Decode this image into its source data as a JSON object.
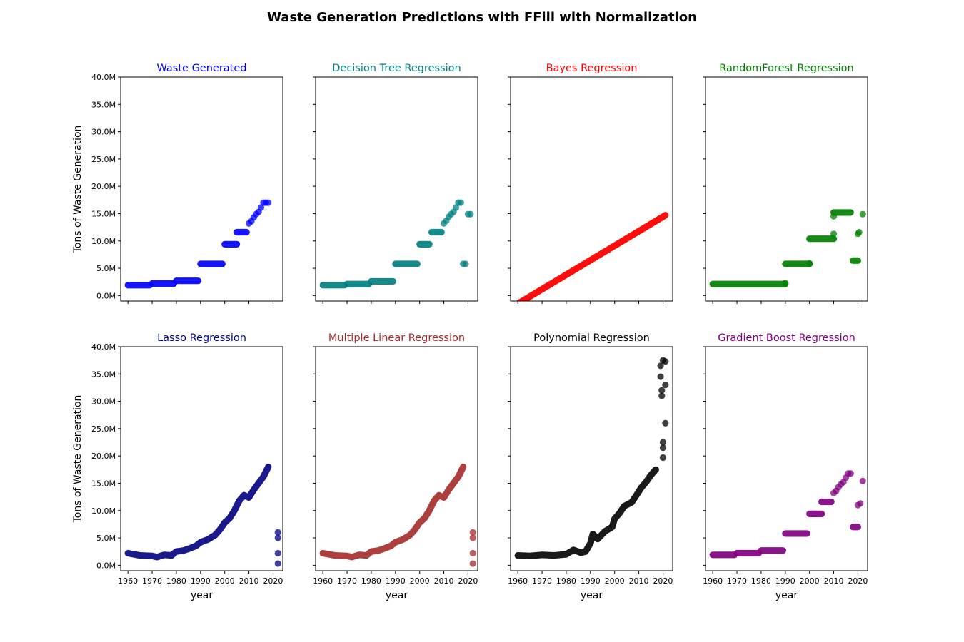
{
  "suptitle": "Waste Generation Predictions with FFill with Normalization",
  "chart_data": [
    {
      "type": "scatter",
      "title": "Waste Generated",
      "color": "#0000ff",
      "xlabel": "",
      "ylabel": "Tons of Waste Generation",
      "ylim": [
        -1000000,
        40000000
      ],
      "xticks": [
        1960,
        1970,
        1980,
        1990,
        2000,
        2010,
        2020
      ],
      "yticks": [
        "0.0M",
        "5.0M",
        "10.0M",
        "15.0M",
        "20.0M",
        "25.0M",
        "30.0M",
        "35.0M",
        "40.0M"
      ],
      "segments": [
        {
          "x0": 1960,
          "x1": 1969,
          "y": 1900000
        },
        {
          "x0": 1970,
          "x1": 1979,
          "y": 2200000
        },
        {
          "x0": 1980,
          "x1": 1989,
          "y": 2700000
        },
        {
          "x0": 1990,
          "x1": 1999,
          "y": 5800000
        },
        {
          "x0": 2000,
          "x1": 2005,
          "y": 9400000
        },
        {
          "x0": 2005,
          "x1": 2009,
          "y": 11600000
        }
      ],
      "points": [
        [
          2010,
          13200000
        ],
        [
          2011,
          13600000
        ],
        [
          2012,
          14300000
        ],
        [
          2013,
          14900000
        ],
        [
          2014,
          15300000
        ],
        [
          2015,
          16100000
        ],
        [
          2016,
          17000000
        ],
        [
          2017,
          17000000
        ],
        [
          2018,
          17000000
        ]
      ]
    },
    {
      "type": "scatter",
      "title": "Decision Tree Regression",
      "color": "#008080",
      "xlabel": "",
      "ylabel": "",
      "ylim": [
        -1000000,
        40000000
      ],
      "xticks": [
        1960,
        1970,
        1980,
        1990,
        2000,
        2010,
        2020
      ],
      "segments": [
        {
          "x0": 1960,
          "x1": 1969,
          "y": 1900000
        },
        {
          "x0": 1970,
          "x1": 1979,
          "y": 2100000
        },
        {
          "x0": 1980,
          "x1": 1989,
          "y": 2600000
        },
        {
          "x0": 1990,
          "x1": 1999,
          "y": 5800000
        },
        {
          "x0": 2000,
          "x1": 2004,
          "y": 9400000
        },
        {
          "x0": 2005,
          "x1": 2009,
          "y": 11600000
        }
      ],
      "points": [
        [
          2010,
          13200000
        ],
        [
          2011,
          13700000
        ],
        [
          2012,
          14400000
        ],
        [
          2013,
          14900000
        ],
        [
          2014,
          15300000
        ],
        [
          2015,
          16100000
        ],
        [
          2016,
          17000000
        ],
        [
          2017,
          17000000
        ],
        [
          2018,
          5800000
        ],
        [
          2019,
          5800000
        ],
        [
          2020,
          14900000
        ],
        [
          2021,
          14900000
        ]
      ]
    },
    {
      "type": "scatter",
      "title": "Bayes Regression",
      "color": "#ff0000",
      "xlabel": "",
      "ylabel": "",
      "ylim": [
        -1000000,
        40000000
      ],
      "xticks": [
        1960,
        1970,
        1980,
        1990,
        2000,
        2010,
        2020
      ],
      "lines": [
        {
          "x0": 1960,
          "x1": 2021,
          "y0": -1500000,
          "y1": 14700000
        }
      ],
      "segments": [],
      "points": []
    },
    {
      "type": "scatter",
      "title": "RandomForest Regression",
      "color": "#008000",
      "xlabel": "",
      "ylabel": "",
      "ylim": [
        -1000000,
        40000000
      ],
      "xticks": [
        1960,
        1970,
        1980,
        1990,
        2000,
        2010,
        2020
      ],
      "segments": [
        {
          "x0": 1960,
          "x1": 1990,
          "y": 2100000
        },
        {
          "x0": 1990,
          "x1": 2000,
          "y": 5800000
        },
        {
          "x0": 2000,
          "x1": 2010,
          "y": 10400000
        },
        {
          "x0": 2010,
          "x1": 2017,
          "y": 15200000
        },
        {
          "x0": 2018,
          "x1": 2020,
          "y": 6400000
        }
      ],
      "points": [
        [
          1990,
          2300000
        ],
        [
          2000,
          5900000
        ],
        [
          2010,
          11300000
        ],
        [
          2010,
          14500000
        ],
        [
          2020,
          11300000
        ],
        [
          2020.5,
          11600000
        ],
        [
          2022,
          14900000
        ]
      ]
    },
    {
      "type": "scatter",
      "title": "Lasso Regression",
      "color": "#000080",
      "xlabel": "year",
      "ylabel": "Tons of Waste Generation",
      "ylim": [
        -1000000,
        40000000
      ],
      "xticks": [
        1960,
        1970,
        1980,
        1990,
        2000,
        2010,
        2020
      ],
      "yticks": [
        "0.0M",
        "5.0M",
        "10.0M",
        "15.0M",
        "20.0M",
        "25.0M",
        "30.0M",
        "35.0M",
        "40.0M"
      ],
      "curve": [
        [
          1960,
          2200000
        ],
        [
          1965,
          1800000
        ],
        [
          1970,
          1700000
        ],
        [
          1972,
          1500000
        ],
        [
          1975,
          1900000
        ],
        [
          1978,
          1800000
        ],
        [
          1980,
          2500000
        ],
        [
          1983,
          2700000
        ],
        [
          1985,
          3000000
        ],
        [
          1988,
          3500000
        ],
        [
          1990,
          4200000
        ],
        [
          1993,
          4700000
        ],
        [
          1996,
          5500000
        ],
        [
          1998,
          6500000
        ],
        [
          2000,
          7800000
        ],
        [
          2002,
          8600000
        ],
        [
          2004,
          10000000
        ],
        [
          2006,
          11800000
        ],
        [
          2008,
          12800000
        ],
        [
          2010,
          12400000
        ],
        [
          2012,
          13800000
        ],
        [
          2014,
          15000000
        ],
        [
          2016,
          16200000
        ],
        [
          2018,
          18000000
        ]
      ],
      "segments": [],
      "points": [
        [
          2022,
          6000000
        ],
        [
          2022,
          5000000
        ],
        [
          2022,
          2200000
        ],
        [
          2022,
          300000
        ]
      ]
    },
    {
      "type": "scatter",
      "title": "Multiple Linear Regression",
      "color": "#a52a2a",
      "xlabel": "year",
      "ylabel": "",
      "ylim": [
        -1000000,
        40000000
      ],
      "xticks": [
        1960,
        1970,
        1980,
        1990,
        2000,
        2010,
        2020
      ],
      "curve": [
        [
          1960,
          2200000
        ],
        [
          1965,
          1800000
        ],
        [
          1970,
          1700000
        ],
        [
          1972,
          1500000
        ],
        [
          1975,
          1900000
        ],
        [
          1978,
          1800000
        ],
        [
          1980,
          2500000
        ],
        [
          1983,
          2700000
        ],
        [
          1985,
          3000000
        ],
        [
          1988,
          3500000
        ],
        [
          1990,
          4200000
        ],
        [
          1993,
          4700000
        ],
        [
          1996,
          5500000
        ],
        [
          1998,
          6500000
        ],
        [
          2000,
          7800000
        ],
        [
          2002,
          8600000
        ],
        [
          2004,
          10000000
        ],
        [
          2006,
          11800000
        ],
        [
          2008,
          12800000
        ],
        [
          2010,
          12400000
        ],
        [
          2012,
          13800000
        ],
        [
          2014,
          15000000
        ],
        [
          2016,
          16200000
        ],
        [
          2018,
          18000000
        ]
      ],
      "segments": [],
      "points": [
        [
          2022,
          6000000
        ],
        [
          2022,
          5000000
        ],
        [
          2022,
          2200000
        ],
        [
          2022,
          300000
        ]
      ]
    },
    {
      "type": "scatter",
      "title": "Polynomial Regression",
      "color": "#000000",
      "xlabel": "year",
      "ylabel": "",
      "ylim": [
        -1000000,
        40000000
      ],
      "xticks": [
        1960,
        1970,
        1980,
        1990,
        2000,
        2010,
        2020
      ],
      "curve": [
        [
          1960,
          1800000
        ],
        [
          1965,
          1700000
        ],
        [
          1970,
          1900000
        ],
        [
          1975,
          1800000
        ],
        [
          1980,
          2000000
        ],
        [
          1983,
          2800000
        ],
        [
          1986,
          2300000
        ],
        [
          1988,
          2500000
        ],
        [
          1990,
          4000000
        ],
        [
          1991,
          5700000
        ],
        [
          1993,
          4800000
        ],
        [
          1996,
          6200000
        ],
        [
          1999,
          7000000
        ],
        [
          2000,
          8500000
        ],
        [
          2002,
          9500000
        ],
        [
          2004,
          10800000
        ],
        [
          2007,
          11500000
        ],
        [
          2009,
          12800000
        ],
        [
          2011,
          14200000
        ],
        [
          2013,
          15200000
        ],
        [
          2015,
          16500000
        ],
        [
          2017,
          17500000
        ]
      ],
      "segments": [],
      "points": [
        [
          2019,
          36500000
        ],
        [
          2019,
          34500000
        ],
        [
          2019.5,
          32000000
        ],
        [
          2019.5,
          31000000
        ],
        [
          2020,
          37500000
        ],
        [
          2020,
          22500000
        ],
        [
          2020,
          21500000
        ],
        [
          2020,
          19700000
        ],
        [
          2021,
          37300000
        ],
        [
          2021,
          33000000
        ],
        [
          2021,
          26000000
        ]
      ]
    },
    {
      "type": "scatter",
      "title": "Gradient Boost Regression",
      "color": "#800080",
      "xlabel": "year",
      "ylabel": "",
      "ylim": [
        -1000000,
        40000000
      ],
      "xticks": [
        1960,
        1970,
        1980,
        1990,
        2000,
        2010,
        2020
      ],
      "segments": [
        {
          "x0": 1960,
          "x1": 1969,
          "y": 1900000
        },
        {
          "x0": 1970,
          "x1": 1979,
          "y": 2200000
        },
        {
          "x0": 1980,
          "x1": 1989,
          "y": 2700000
        },
        {
          "x0": 1990,
          "x1": 1999,
          "y": 5800000
        },
        {
          "x0": 2000,
          "x1": 2005,
          "y": 9400000
        },
        {
          "x0": 2005,
          "x1": 2009,
          "y": 11600000
        },
        {
          "x0": 2018,
          "x1": 2020,
          "y": 7000000
        }
      ],
      "points": [
        [
          2010,
          13200000
        ],
        [
          2011,
          13600000
        ],
        [
          2012,
          14300000
        ],
        [
          2013,
          14800000
        ],
        [
          2014,
          15200000
        ],
        [
          2015,
          16000000
        ],
        [
          2016,
          16800000
        ],
        [
          2017,
          16800000
        ],
        [
          2020,
          11000000
        ],
        [
          2021,
          11300000
        ],
        [
          2022,
          15400000
        ]
      ]
    }
  ]
}
